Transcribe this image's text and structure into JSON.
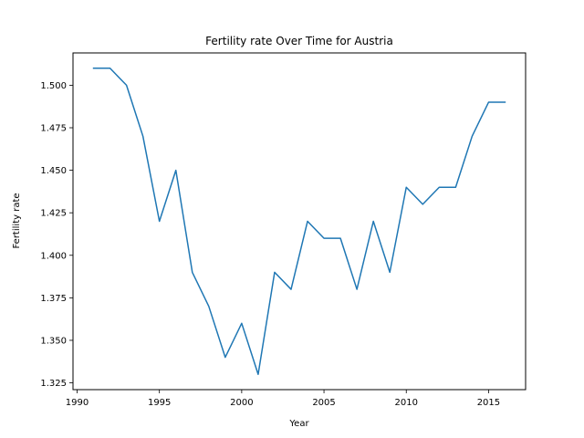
{
  "chart_data": {
    "type": "line",
    "title": "Fertility rate Over Time for Austria",
    "xlabel": "Year",
    "ylabel": "Fertility rate",
    "xlim": [
      1989.75,
      2017.25
    ],
    "ylim": [
      1.321,
      1.519
    ],
    "grid": false,
    "legend": "none",
    "x_ticks": [
      1990,
      1995,
      2000,
      2005,
      2010,
      2015
    ],
    "x_tick_labels": [
      "1990",
      "1995",
      "2000",
      "2005",
      "2010",
      "2015"
    ],
    "y_ticks": [
      1.325,
      1.35,
      1.375,
      1.4,
      1.425,
      1.45,
      1.475,
      1.5
    ],
    "y_tick_labels": [
      "1.325",
      "1.350",
      "1.375",
      "1.400",
      "1.425",
      "1.450",
      "1.475",
      "1.500"
    ],
    "series": [
      {
        "color": "#1f77b4",
        "x": [
          1991,
          1992,
          1993,
          1994,
          1995,
          1996,
          1997,
          1998,
          1999,
          2000,
          2001,
          2002,
          2003,
          2004,
          2005,
          2006,
          2007,
          2008,
          2009,
          2010,
          2011,
          2012,
          2013,
          2014,
          2015,
          2016
        ],
        "y": [
          1.51,
          1.51,
          1.5,
          1.47,
          1.42,
          1.45,
          1.39,
          1.37,
          1.34,
          1.36,
          1.33,
          1.39,
          1.38,
          1.42,
          1.41,
          1.41,
          1.38,
          1.42,
          1.39,
          1.44,
          1.43,
          1.44,
          1.44,
          1.47,
          1.49,
          1.49
        ]
      }
    ]
  }
}
